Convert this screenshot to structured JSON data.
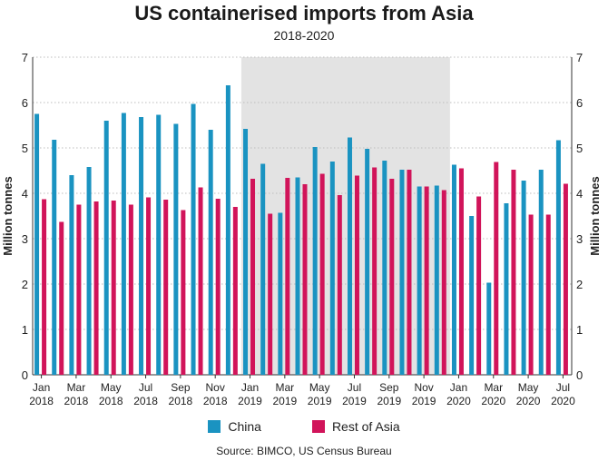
{
  "chart_data": {
    "type": "bar",
    "title": "US containerised imports from Asia",
    "subtitle": "2018-2020",
    "ylabel": "Million tonnes",
    "ylim": [
      0,
      7
    ],
    "yticks": [
      0,
      1,
      2,
      3,
      4,
      5,
      6,
      7
    ],
    "grid": true,
    "legend_position": "bottom",
    "categories": [
      "Jan 2018",
      "Feb 2018",
      "Mar 2018",
      "Apr 2018",
      "May 2018",
      "Jun 2018",
      "Jul 2018",
      "Aug 2018",
      "Sep 2018",
      "Oct 2018",
      "Nov 2018",
      "Dec 2018",
      "Jan 2019",
      "Feb 2019",
      "Mar 2019",
      "Apr 2019",
      "May 2019",
      "Jun 2019",
      "Jul 2019",
      "Aug 2019",
      "Sep 2019",
      "Oct 2019",
      "Nov 2019",
      "Dec 2019",
      "Jan 2020",
      "Feb 2020",
      "Mar 2020",
      "Apr 2020",
      "May 2020",
      "Jun 2020",
      "Jul 2020"
    ],
    "tick_labels": [
      {
        "index": 0,
        "month": "Jan",
        "year": "2018"
      },
      {
        "index": 2,
        "month": "Mar",
        "year": "2018"
      },
      {
        "index": 4,
        "month": "May",
        "year": "2018"
      },
      {
        "index": 6,
        "month": "Jul",
        "year": "2018"
      },
      {
        "index": 8,
        "month": "Sep",
        "year": "2018"
      },
      {
        "index": 10,
        "month": "Nov",
        "year": "2018"
      },
      {
        "index": 12,
        "month": "Jan",
        "year": "2019"
      },
      {
        "index": 14,
        "month": "Mar",
        "year": "2019"
      },
      {
        "index": 16,
        "month": "May",
        "year": "2019"
      },
      {
        "index": 18,
        "month": "Jul",
        "year": "2019"
      },
      {
        "index": 20,
        "month": "Sep",
        "year": "2019"
      },
      {
        "index": 22,
        "month": "Nov",
        "year": "2019"
      },
      {
        "index": 24,
        "month": "Jan",
        "year": "2020"
      },
      {
        "index": 26,
        "month": "Mar",
        "year": "2020"
      },
      {
        "index": 28,
        "month": "May",
        "year": "2020"
      },
      {
        "index": 30,
        "month": "Jul",
        "year": "2020"
      }
    ],
    "highlight_range": [
      "Jan 2019",
      "Dec 2019"
    ],
    "series": [
      {
        "name": "China",
        "color": "#1a93c1",
        "values": [
          5.75,
          5.18,
          4.4,
          4.58,
          5.6,
          5.77,
          5.68,
          5.73,
          5.53,
          5.97,
          5.4,
          6.38,
          5.42,
          4.65,
          3.57,
          4.35,
          5.02,
          4.7,
          5.23,
          4.98,
          4.72,
          4.52,
          4.15,
          4.17,
          4.63,
          3.5,
          2.03,
          3.78,
          4.28,
          4.52,
          5.17
        ]
      },
      {
        "name": "Rest of Asia",
        "color": "#d1145a",
        "values": [
          3.87,
          3.37,
          3.75,
          3.82,
          3.84,
          3.75,
          3.91,
          3.86,
          3.63,
          4.13,
          3.88,
          3.7,
          4.32,
          3.55,
          4.34,
          4.2,
          4.43,
          3.96,
          4.39,
          4.57,
          4.32,
          4.52,
          4.15,
          4.07,
          4.55,
          3.93,
          4.69,
          4.52,
          3.53,
          3.53,
          4.21
        ]
      }
    ]
  },
  "legend": {
    "items": [
      {
        "label": "China",
        "color": "#1a93c1"
      },
      {
        "label": "Rest of Asia",
        "color": "#d1145a"
      }
    ]
  },
  "source": "Source: BIMCO, US Census Bureau"
}
